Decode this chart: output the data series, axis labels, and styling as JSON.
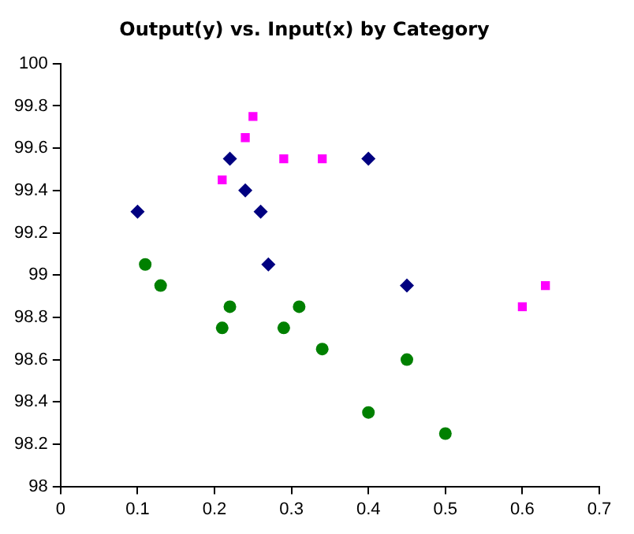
{
  "chart_data": {
    "type": "scatter",
    "title": "Output(y) vs. Input(x) by Category",
    "xlim": [
      0,
      0.7
    ],
    "xticks": [
      0,
      0.1,
      0.2,
      0.3,
      0.4,
      0.5,
      0.6,
      0.7
    ],
    "ylim": [
      98,
      100
    ],
    "yticks": [
      98,
      98.2,
      98.4,
      98.6,
      98.8,
      99,
      99.2,
      99.4,
      99.6,
      99.8,
      100
    ],
    "grid": false,
    "legend": false,
    "series": [
      {
        "color": "#000080",
        "marker": "diamond",
        "x": [
          0.1,
          0.22,
          0.24,
          0.26,
          0.27,
          0.4,
          0.45
        ],
        "values": [
          99.3,
          99.55,
          99.4,
          99.3,
          99.05,
          99.55,
          98.95
        ]
      },
      {
        "color": "#ff00ff",
        "marker": "square",
        "x": [
          0.21,
          0.24,
          0.25,
          0.29,
          0.34,
          0.6,
          0.63
        ],
        "values": [
          99.45,
          99.65,
          99.75,
          99.55,
          99.55,
          98.85,
          98.95
        ]
      },
      {
        "color": "#008000",
        "marker": "circle",
        "x": [
          0.11,
          0.13,
          0.21,
          0.22,
          0.29,
          0.31,
          0.34,
          0.4,
          0.45,
          0.5
        ],
        "values": [
          99.05,
          98.95,
          98.75,
          98.85,
          98.75,
          98.85,
          98.65,
          98.35,
          98.6,
          98.25
        ]
      }
    ]
  }
}
